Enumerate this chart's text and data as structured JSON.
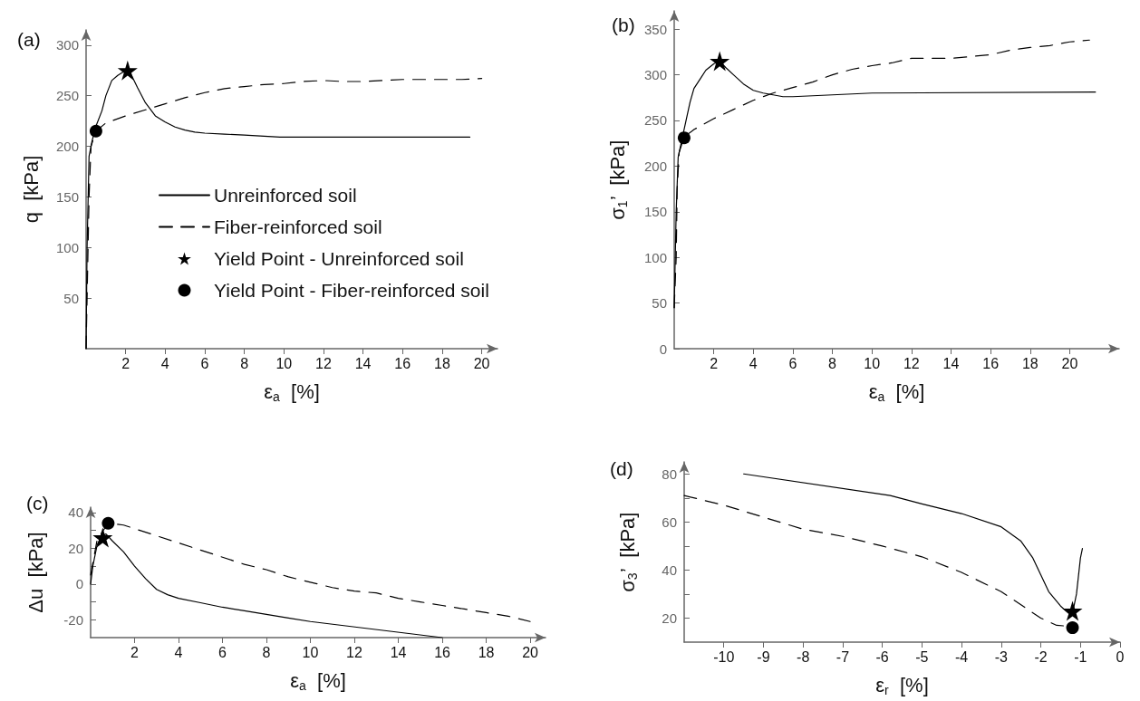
{
  "chart_data": [
    {
      "type": "line",
      "title": "(a)",
      "xlabel": "ε$_{a}$  [%]",
      "ylabel": "q  [kPa]",
      "xlim": [
        0,
        20.8
      ],
      "ylim": [
        0,
        315
      ],
      "xticks": [
        2,
        4,
        6,
        8,
        10,
        12,
        14,
        16,
        18,
        20
      ],
      "yticks": [
        50,
        100,
        150,
        200,
        250,
        300
      ],
      "legend": "bottom right",
      "series": [
        {
          "name": "Unreinforced soil",
          "color": "#000000",
          "line_style": "solid",
          "marker": "none",
          "x": [
            0,
            0.05,
            0.15,
            0.3,
            0.5,
            0.8,
            1.0,
            1.3,
            1.6,
            2.0,
            2.3,
            2.6,
            3.0,
            3.5,
            4,
            4.5,
            5,
            5.5,
            6,
            7,
            8,
            9,
            9.8,
            19.4
          ],
          "values": [
            0,
            100,
            190,
            205,
            220,
            235,
            250,
            265,
            270,
            275,
            270,
            258,
            243,
            230,
            224,
            219,
            216,
            214,
            213,
            212,
            211,
            210,
            209,
            209
          ]
        },
        {
          "name": "Fiber-reinforced soil",
          "color": "#000000",
          "line_style": "dashed",
          "marker": "none",
          "x": [
            0,
            0.05,
            0.15,
            0.25,
            0.5,
            1,
            2,
            3,
            4,
            5,
            6,
            7,
            8,
            9,
            10,
            11,
            12,
            13,
            14,
            15,
            16,
            17,
            18,
            19,
            20
          ],
          "values": [
            0,
            50,
            150,
            200,
            215,
            223,
            230,
            236,
            242,
            248,
            253,
            257,
            259,
            261,
            262,
            264,
            265,
            264,
            264,
            265,
            266,
            266,
            266,
            266,
            267
          ]
        },
        {
          "name": "Yield Point - Unreinforced soil",
          "type": "scatter",
          "color": "#000000",
          "marker": "star",
          "x": [
            2.1
          ],
          "values": [
            275
          ]
        },
        {
          "name": "Yield Point - Fiber-reinforced soil",
          "type": "scatter",
          "color": "#000000",
          "marker": "circle",
          "x": [
            0.5
          ],
          "values": [
            215
          ]
        }
      ]
    },
    {
      "type": "line",
      "title": "(b)",
      "xlabel": "ε$_{a}$  [%]",
      "ylabel": "σ$_{1}$’  [kPa]",
      "xlim": [
        0,
        22.5
      ],
      "ylim": [
        0,
        370
      ],
      "xticks": [
        2,
        4,
        6,
        8,
        10,
        12,
        14,
        16,
        18,
        20
      ],
      "yticks": [
        0,
        50,
        100,
        150,
        200,
        250,
        300,
        350
      ],
      "series": [
        {
          "color": "#000000",
          "line_style": "solid",
          "marker": "none",
          "x": [
            0,
            0.1,
            0.2,
            0.4,
            0.6,
            0.8,
            1.0,
            1.3,
            1.6,
            2.0,
            2.3,
            2.6,
            3,
            3.5,
            4,
            4.5,
            5,
            5.5,
            6,
            7,
            8,
            10,
            21.3
          ],
          "values": [
            45,
            150,
            210,
            230,
            250,
            270,
            285,
            295,
            305,
            312,
            315,
            308,
            300,
            290,
            283,
            280,
            278,
            276,
            276,
            277,
            278,
            280,
            281
          ]
        },
        {
          "color": "#000000",
          "line_style": "dashed",
          "marker": "none",
          "x": [
            0,
            0.1,
            0.15,
            0.25,
            0.5,
            1,
            2,
            3,
            4,
            5,
            6,
            7,
            8,
            9,
            10,
            11,
            12,
            13,
            14,
            15,
            16,
            17,
            18,
            19,
            20,
            21
          ],
          "values": [
            45,
            100,
            175,
            215,
            232,
            240,
            252,
            262,
            272,
            280,
            286,
            292,
            300,
            306,
            310,
            313,
            318,
            318,
            318,
            320,
            322,
            327,
            330,
            332,
            336,
            338
          ]
        },
        {
          "type": "scatter",
          "color": "#000000",
          "marker": "star",
          "x": [
            2.3
          ],
          "values": [
            315
          ]
        },
        {
          "type": "scatter",
          "color": "#000000",
          "marker": "circle",
          "x": [
            0.5
          ],
          "values": [
            231
          ]
        }
      ]
    },
    {
      "type": "line",
      "title": "(c)",
      "xlabel": "ε$_{a}$  [%]",
      "ylabel": "Δu  [kPa]",
      "xlim": [
        0,
        20.7
      ],
      "ylim": [
        -30,
        43
      ],
      "xticks": [
        2,
        4,
        6,
        8,
        10,
        12,
        14,
        16,
        18,
        20
      ],
      "yticks": [
        -20,
        {
          "value": -10,
          "label": null
        },
        0,
        {
          "value": 10,
          "label": null
        },
        20,
        {
          "value": 30,
          "label": null
        },
        40
      ],
      "series": [
        {
          "color": "#000000",
          "line_style": "solid",
          "marker": "none",
          "x": [
            0,
            0.1,
            0.3,
            0.5,
            0.7,
            1,
            1.5,
            2,
            2.5,
            3,
            3.5,
            4,
            5,
            6,
            7,
            8,
            9,
            10,
            16
          ],
          "values": [
            0,
            10,
            22,
            27,
            28,
            24,
            18,
            10,
            3,
            -3,
            -6,
            -8,
            -10.5,
            -13,
            -15,
            -17,
            -19,
            -21,
            -30
          ]
        },
        {
          "color": "#000000",
          "line_style": "dashed",
          "marker": "none",
          "x": [
            0,
            0.3,
            0.8,
            1.5,
            2,
            3,
            4,
            5,
            6,
            7,
            8,
            9,
            10,
            11,
            12,
            13,
            14,
            15,
            16,
            17,
            18,
            19,
            20
          ],
          "values": [
            5,
            25,
            34,
            33,
            31,
            27,
            23,
            19,
            15,
            11,
            8,
            4,
            1,
            -2,
            -4,
            -5,
            -8,
            -10,
            -12,
            -14,
            -16,
            -18,
            -21
          ]
        },
        {
          "type": "scatter",
          "color": "#000000",
          "marker": "star",
          "x": [
            0.55
          ],
          "values": [
            26
          ]
        },
        {
          "type": "scatter",
          "color": "#000000",
          "marker": "circle",
          "x": [
            0.8
          ],
          "values": [
            34
          ]
        }
      ]
    },
    {
      "type": "line",
      "title": "(d)",
      "xlabel": "ε$_{r}$  [%]",
      "ylabel": "σ$_{3}$’  [kPa]",
      "xlim": [
        -11,
        0
      ],
      "ylim": [
        10,
        85
      ],
      "xticks": [
        -10,
        -9,
        -8,
        -7,
        -6,
        -5,
        -4,
        -3,
        -2,
        -1,
        0
      ],
      "yticks": [
        20,
        {
          "value": 30,
          "label": null
        },
        40,
        {
          "value": 50,
          "label": null
        },
        60,
        {
          "value": 70,
          "label": null
        },
        80
      ],
      "series": [
        {
          "color": "#000000",
          "line_style": "solid",
          "marker": "none",
          "x": [
            -9.5,
            -5.8,
            -5,
            -4,
            -3,
            -2.5,
            -2.2,
            -2,
            -1.8,
            -1.5,
            -1.3,
            -1.2,
            -1.1,
            -1.0,
            -0.95
          ],
          "values": [
            80,
            71,
            67.5,
            63.5,
            58,
            52,
            45,
            38,
            31,
            25,
            22,
            22,
            30,
            45,
            49
          ]
        },
        {
          "color": "#000000",
          "line_style": "dashed",
          "marker": "none",
          "x": [
            -11,
            -10,
            -9,
            -8,
            -7,
            -6,
            -5,
            -4,
            -3,
            -2,
            -1.6,
            -1.2
          ],
          "values": [
            71,
            67,
            62,
            57,
            54,
            50,
            45.5,
            39,
            31,
            20,
            17,
            16.5
          ]
        },
        {
          "type": "scatter",
          "color": "#000000",
          "marker": "star",
          "x": [
            -1.2
          ],
          "values": [
            23
          ]
        },
        {
          "type": "scatter",
          "color": "#000000",
          "marker": "circle",
          "x": [
            -1.2
          ],
          "values": [
            16
          ]
        }
      ]
    }
  ]
}
